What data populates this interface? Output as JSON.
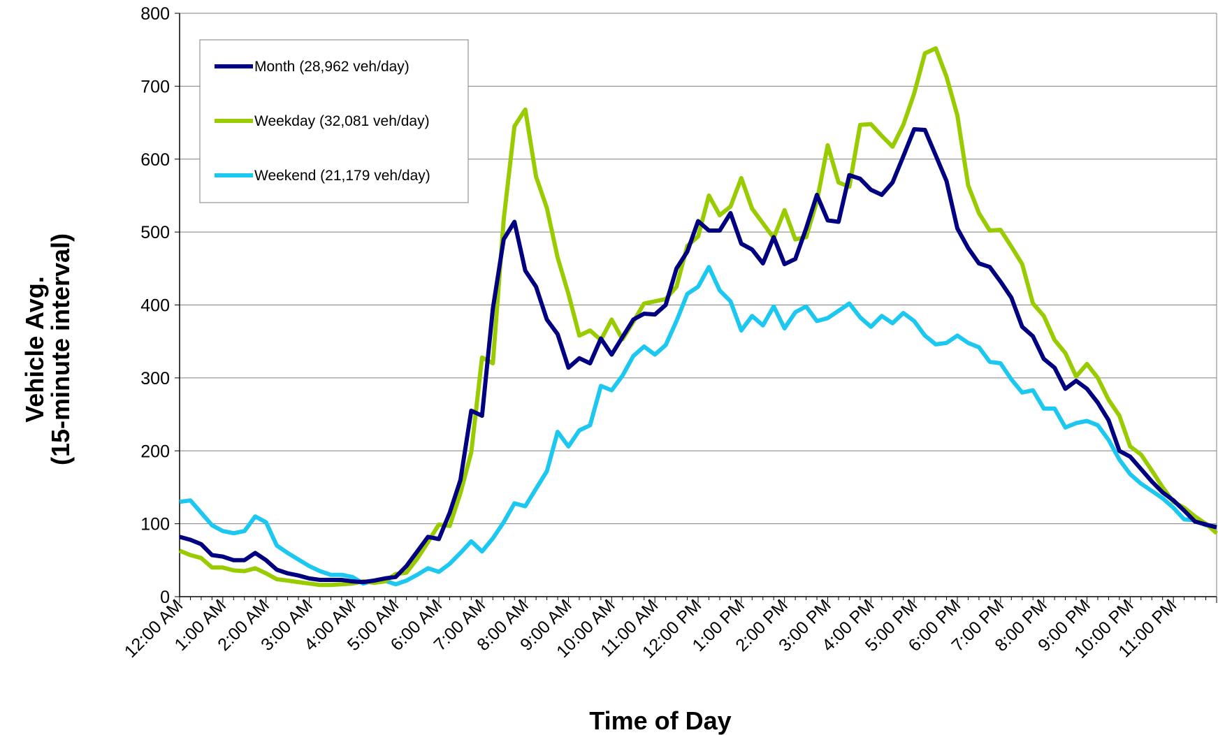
{
  "chart_data": {
    "type": "line",
    "xlabel": "Time of Day",
    "ylabel": [
      "Vehicle Avg.",
      "(15-minute interval)"
    ],
    "ylim": [
      0,
      800
    ],
    "yticks": [
      0,
      100,
      200,
      300,
      400,
      500,
      600,
      700,
      800
    ],
    "x_interval_minutes": 15,
    "x_tick_labels": [
      "12:00 AM",
      "1:00 AM",
      "2:00 AM",
      "3:00 AM",
      "4:00 AM",
      "5:00 AM",
      "6:00 AM",
      "7:00 AM",
      "8:00 AM",
      "9:00 AM",
      "10:00 AM",
      "11:00 AM",
      "12:00 PM",
      "1:00 PM",
      "2:00 PM",
      "3:00 PM",
      "4:00 PM",
      "5:00 PM",
      "6:00 PM",
      "7:00 PM",
      "8:00 PM",
      "9:00 PM",
      "10:00 PM",
      "11:00 PM"
    ],
    "grid": "horizontal",
    "legend_position": "top-left",
    "series": [
      {
        "name": "Month (28,962 veh/day)",
        "color": "#000080",
        "values": [
          82,
          78,
          72,
          57,
          55,
          50,
          50,
          60,
          50,
          37,
          32,
          29,
          25,
          23,
          23,
          23,
          21,
          20,
          22,
          25,
          27,
          42,
          62,
          82,
          79,
          115,
          160,
          255,
          248,
          395,
          490,
          514,
          447,
          425,
          380,
          360,
          314,
          327,
          320,
          354,
          332,
          356,
          380,
          388,
          387,
          400,
          450,
          473,
          515,
          502,
          502,
          526,
          484,
          476,
          457,
          493,
          456,
          463,
          505,
          551,
          516,
          514,
          578,
          573,
          558,
          551,
          568,
          604,
          641,
          640,
          605,
          570,
          505,
          478,
          457,
          452,
          432,
          410,
          370,
          357,
          326,
          314,
          285,
          296,
          285,
          266,
          242,
          200,
          192,
          175,
          158,
          143,
          132,
          118,
          103,
          99,
          95
        ]
      },
      {
        "name": "Weekday (32,081 veh/day)",
        "color": "#99cc00",
        "values": [
          63,
          57,
          53,
          40,
          40,
          36,
          35,
          39,
          32,
          24,
          22,
          20,
          18,
          16,
          16,
          17,
          18,
          21,
          19,
          21,
          31,
          33,
          52,
          75,
          99,
          97,
          142,
          198,
          328,
          320,
          517,
          645,
          668,
          576,
          533,
          465,
          415,
          358,
          365,
          352,
          380,
          353,
          377,
          402,
          405,
          408,
          425,
          481,
          494,
          550,
          523,
          535,
          574,
          532,
          512,
          492,
          530,
          490,
          493,
          542,
          619,
          568,
          562,
          647,
          648,
          632,
          617,
          647,
          690,
          745,
          752,
          713,
          660,
          564,
          526,
          502,
          503,
          480,
          456,
          402,
          385,
          352,
          334,
          302,
          319,
          300,
          270,
          248,
          206,
          195,
          173,
          150,
          130,
          122,
          110,
          100,
          87
        ]
      },
      {
        "name": "Weekend (21,179 veh/day)",
        "color": "#1cc8f0",
        "values": [
          130,
          132,
          115,
          98,
          90,
          87,
          90,
          110,
          102,
          70,
          60,
          51,
          42,
          35,
          30,
          30,
          27,
          18,
          22,
          22,
          17,
          22,
          30,
          39,
          34,
          45,
          60,
          76,
          62,
          80,
          102,
          128,
          124,
          148,
          172,
          226,
          206,
          228,
          235,
          289,
          283,
          303,
          330,
          343,
          332,
          345,
          378,
          415,
          425,
          452,
          420,
          405,
          365,
          385,
          372,
          398,
          368,
          390,
          398,
          378,
          382,
          392,
          402,
          383,
          370,
          385,
          375,
          389,
          378,
          358,
          346,
          348,
          358,
          348,
          342,
          322,
          320,
          298,
          280,
          283,
          258,
          258,
          232,
          238,
          241,
          235,
          215,
          188,
          168,
          155,
          145,
          135,
          122,
          106,
          105,
          98,
          96
        ]
      }
    ]
  }
}
